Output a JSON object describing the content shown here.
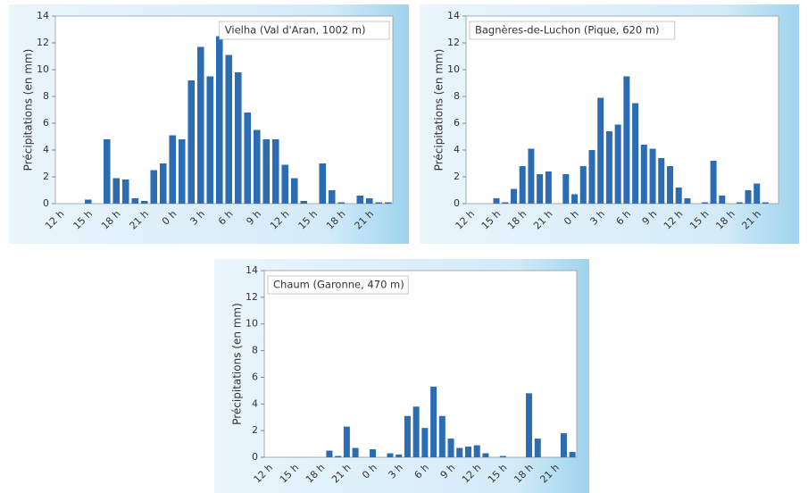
{
  "chart_data": [
    {
      "type": "bar",
      "title": "Vielha (Val d'Aran, 1002 m)",
      "ylabel": "Précipitations (en mm)",
      "categories": [
        "12 h",
        null,
        null,
        "15 h",
        null,
        null,
        "18 h",
        null,
        null,
        "21 h",
        null,
        null,
        "0 h",
        null,
        null,
        "3 h",
        null,
        null,
        "6 h",
        null,
        null,
        "9 h",
        null,
        null,
        "12 h",
        null,
        null,
        "15 h",
        null,
        null,
        "18 h",
        null,
        null,
        "21 h",
        null,
        null
      ],
      "values": [
        0,
        0,
        0,
        0.3,
        0,
        4.8,
        1.9,
        1.8,
        0.4,
        0.2,
        2.5,
        3.0,
        5.1,
        4.8,
        9.2,
        11.7,
        9.5,
        12.5,
        11.1,
        9.8,
        6.8,
        5.5,
        4.8,
        4.8,
        2.9,
        1.9,
        0.2,
        0,
        3.0,
        1.0,
        0.1,
        0,
        0.6,
        0.4,
        0.1,
        0.1
      ],
      "color": "#2b6cb3",
      "ylim": [
        0,
        14
      ],
      "yticks": [
        0,
        2,
        4,
        6,
        8,
        10,
        12,
        14
      ]
    },
    {
      "type": "bar",
      "title": "Bagnères-de-Luchon (Pique, 620 m)",
      "ylabel": "Précipitations (en mm)",
      "categories": [
        "12 h",
        null,
        null,
        "15 h",
        null,
        null,
        "18 h",
        null,
        null,
        "21 h",
        null,
        null,
        "0 h",
        null,
        null,
        "3 h",
        null,
        null,
        "6 h",
        null,
        null,
        "9 h",
        null,
        null,
        "12 h",
        null,
        null,
        "15 h",
        null,
        null,
        "18 h",
        null,
        null,
        "21 h",
        null,
        null
      ],
      "values": [
        0,
        0,
        0,
        0.4,
        0.1,
        1.1,
        2.8,
        4.1,
        2.2,
        2.4,
        0,
        2.2,
        0.7,
        2.8,
        4.0,
        7.9,
        5.4,
        5.9,
        9.5,
        7.5,
        4.4,
        4.1,
        3.4,
        2.8,
        1.2,
        0.4,
        0,
        0.1,
        3.2,
        0.6,
        0,
        0.1,
        1.0,
        1.5,
        0.1,
        0
      ],
      "color": "#2b6cb3",
      "ylim": [
        0,
        14
      ],
      "yticks": [
        0,
        2,
        4,
        6,
        8,
        10,
        12,
        14
      ]
    },
    {
      "type": "bar",
      "title": "Chaum (Garonne, 470 m)",
      "ylabel": "Précipitations (en mm)",
      "categories": [
        "12 h",
        null,
        null,
        "15 h",
        null,
        null,
        "18 h",
        null,
        null,
        "21 h",
        null,
        null,
        "0 h",
        null,
        null,
        "3 h",
        null,
        null,
        "6 h",
        null,
        null,
        "9 h",
        null,
        null,
        "12 h",
        null,
        null,
        "15 h",
        null,
        null,
        "18 h",
        null,
        null,
        "21 h",
        null,
        null
      ],
      "values": [
        0,
        0,
        0,
        0,
        0,
        0,
        0,
        0.5,
        0.1,
        2.3,
        0.7,
        0,
        0.6,
        0,
        0.3,
        0.2,
        3.1,
        3.8,
        2.2,
        5.3,
        3.1,
        1.4,
        0.7,
        0.8,
        0.9,
        0.3,
        0,
        0.1,
        0,
        0,
        4.8,
        1.4,
        0,
        0,
        1.8,
        0.4
      ],
      "color": "#2b6cb3",
      "ylim": [
        0,
        14
      ],
      "yticks": [
        0,
        2,
        4,
        6,
        8,
        10,
        12,
        14
      ]
    }
  ]
}
